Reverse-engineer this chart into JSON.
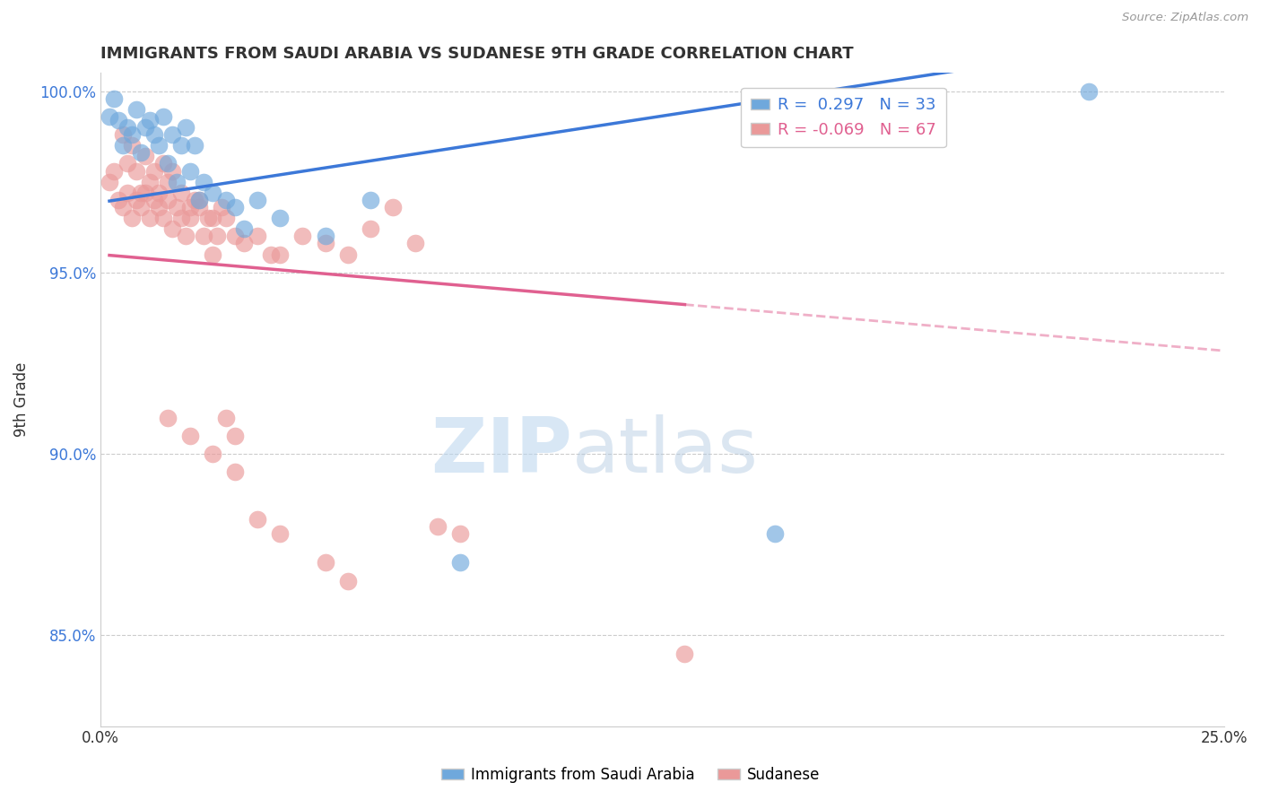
{
  "title": "IMMIGRANTS FROM SAUDI ARABIA VS SUDANESE 9TH GRADE CORRELATION CHART",
  "source_text": "Source: ZipAtlas.com",
  "ylabel": "9th Grade",
  "watermark_zip": "ZIP",
  "watermark_atlas": "atlas",
  "xlim": [
    0.0,
    0.25
  ],
  "ylim": [
    0.825,
    1.005
  ],
  "xticks": [
    0.0,
    0.05,
    0.1,
    0.15,
    0.2,
    0.25
  ],
  "xticklabels": [
    "0.0%",
    "",
    "",
    "",
    "",
    "25.0%"
  ],
  "yticks": [
    0.85,
    0.9,
    0.95,
    1.0
  ],
  "yticklabels": [
    "85.0%",
    "90.0%",
    "95.0%",
    "100.0%"
  ],
  "blue_R": 0.297,
  "blue_N": 33,
  "pink_R": -0.069,
  "pink_N": 67,
  "blue_color": "#6fa8dc",
  "pink_color": "#ea9999",
  "blue_line_color": "#3c78d8",
  "pink_line_color": "#e06090",
  "grid_color": "#cccccc",
  "background_color": "#ffffff",
  "legend_label_blue": "Immigrants from Saudi Arabia",
  "legend_label_pink": "Sudanese",
  "blue_dots_x": [
    0.002,
    0.003,
    0.004,
    0.005,
    0.006,
    0.007,
    0.008,
    0.009,
    0.01,
    0.011,
    0.012,
    0.013,
    0.014,
    0.015,
    0.016,
    0.017,
    0.018,
    0.019,
    0.02,
    0.021,
    0.022,
    0.023,
    0.025,
    0.028,
    0.03,
    0.032,
    0.035,
    0.04,
    0.05,
    0.06,
    0.08,
    0.15,
    0.22
  ],
  "blue_dots_y": [
    0.993,
    0.998,
    0.992,
    0.985,
    0.99,
    0.988,
    0.995,
    0.983,
    0.99,
    0.992,
    0.988,
    0.985,
    0.993,
    0.98,
    0.988,
    0.975,
    0.985,
    0.99,
    0.978,
    0.985,
    0.97,
    0.975,
    0.972,
    0.97,
    0.968,
    0.962,
    0.97,
    0.965,
    0.96,
    0.97,
    0.87,
    0.878,
    1.0
  ],
  "pink_dots_x": [
    0.002,
    0.003,
    0.004,
    0.005,
    0.006,
    0.007,
    0.008,
    0.009,
    0.01,
    0.011,
    0.012,
    0.013,
    0.014,
    0.015,
    0.016,
    0.017,
    0.018,
    0.019,
    0.02,
    0.021,
    0.022,
    0.023,
    0.024,
    0.025,
    0.026,
    0.027,
    0.028,
    0.03,
    0.032,
    0.035,
    0.038,
    0.04,
    0.045,
    0.05,
    0.055,
    0.06,
    0.065,
    0.07,
    0.005,
    0.006,
    0.007,
    0.008,
    0.009,
    0.01,
    0.011,
    0.012,
    0.013,
    0.014,
    0.015,
    0.016,
    0.018,
    0.02,
    0.022,
    0.025,
    0.028,
    0.03,
    0.015,
    0.02,
    0.025,
    0.03,
    0.035,
    0.04,
    0.05,
    0.055,
    0.075,
    0.08,
    0.13
  ],
  "pink_dots_y": [
    0.975,
    0.978,
    0.97,
    0.968,
    0.972,
    0.965,
    0.97,
    0.968,
    0.972,
    0.965,
    0.97,
    0.968,
    0.965,
    0.97,
    0.962,
    0.968,
    0.965,
    0.96,
    0.965,
    0.97,
    0.968,
    0.96,
    0.965,
    0.955,
    0.96,
    0.968,
    0.965,
    0.96,
    0.958,
    0.96,
    0.955,
    0.955,
    0.96,
    0.958,
    0.955,
    0.962,
    0.968,
    0.958,
    0.988,
    0.98,
    0.985,
    0.978,
    0.972,
    0.982,
    0.975,
    0.978,
    0.972,
    0.98,
    0.975,
    0.978,
    0.972,
    0.968,
    0.97,
    0.965,
    0.91,
    0.905,
    0.91,
    0.905,
    0.9,
    0.895,
    0.882,
    0.878,
    0.87,
    0.865,
    0.88,
    0.878,
    0.845
  ]
}
